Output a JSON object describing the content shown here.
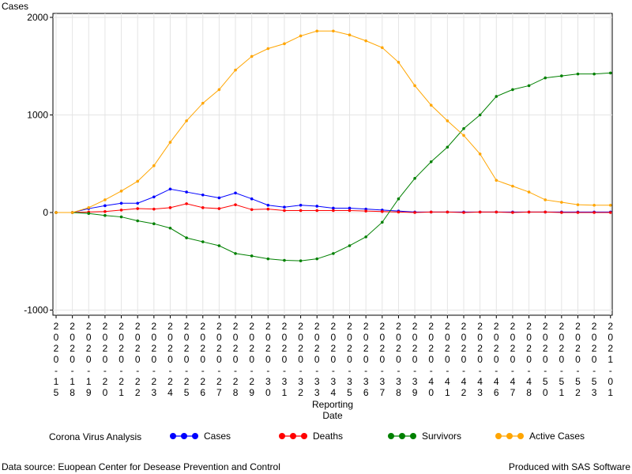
{
  "chart_data": {
    "type": "line",
    "ylabel": "Cases",
    "xlabel_line1": "Reporting",
    "xlabel_line2": "Date",
    "ylim": [
      -1050,
      2000
    ],
    "yticks": [
      {
        "value": -1000,
        "label": "-1000"
      },
      {
        "value": 0,
        "label": "0"
      },
      {
        "value": 1000,
        "label": "1000"
      },
      {
        "value": 2000,
        "label": "2000"
      }
    ],
    "categories": [
      "2020-15",
      "2020-18",
      "2020-19",
      "2020-20",
      "2020-21",
      "2020-22",
      "2020-23",
      "2020-24",
      "2020-25",
      "2020-26",
      "2020-27",
      "2020-28",
      "2020-29",
      "2020-30",
      "2020-31",
      "2020-32",
      "2020-33",
      "2020-34",
      "2020-35",
      "2020-36",
      "2020-37",
      "2020-38",
      "2020-39",
      "2020-40",
      "2020-41",
      "2020-42",
      "2020-43",
      "2020-46",
      "2020-47",
      "2020-48",
      "2020-50",
      "2020-51",
      "2020-52",
      "2020-53",
      "2021-01"
    ],
    "grid": true,
    "legend_title": "Corona Virus Analysis",
    "legend_position": "bottom",
    "series": [
      {
        "name": "Cases",
        "color": "#0000ff",
        "values": [
          0,
          0,
          40,
          70,
          95,
          95,
          160,
          240,
          210,
          180,
          150,
          200,
          140,
          75,
          55,
          75,
          65,
          45,
          45,
          35,
          25,
          15,
          5,
          5,
          5,
          5,
          5,
          5,
          5,
          5,
          5,
          5,
          5,
          5,
          5
        ]
      },
      {
        "name": "Deaths",
        "color": "#ff0000",
        "values": [
          0,
          0,
          5,
          10,
          25,
          40,
          35,
          50,
          90,
          50,
          40,
          80,
          30,
          35,
          20,
          20,
          20,
          20,
          20,
          15,
          10,
          5,
          0,
          5,
          5,
          0,
          5,
          5,
          0,
          5,
          5,
          0,
          0,
          0,
          0
        ]
      },
      {
        "name": "Survivors",
        "color": "#008000",
        "values": [
          0,
          0,
          -10,
          -30,
          -45,
          -85,
          -115,
          -160,
          -260,
          -300,
          -340,
          -420,
          -445,
          -475,
          -490,
          -495,
          -475,
          -420,
          -340,
          -250,
          -100,
          140,
          350,
          520,
          670,
          860,
          1000,
          1190,
          1260,
          1300,
          1380,
          1400,
          1420,
          1420,
          1430
        ]
      },
      {
        "name": "Active Cases",
        "color": "#ffa500",
        "values": [
          0,
          0,
          50,
          130,
          220,
          320,
          480,
          720,
          940,
          1120,
          1260,
          1460,
          1600,
          1680,
          1730,
          1810,
          1860,
          1860,
          1820,
          1760,
          1690,
          1540,
          1300,
          1100,
          940,
          790,
          600,
          330,
          270,
          210,
          130,
          105,
          80,
          75,
          75
        ]
      }
    ]
  },
  "footer": {
    "source": "Data source: Euopean Center for Desease Prevention and Control",
    "produced": "Produced with SAS Software"
  }
}
